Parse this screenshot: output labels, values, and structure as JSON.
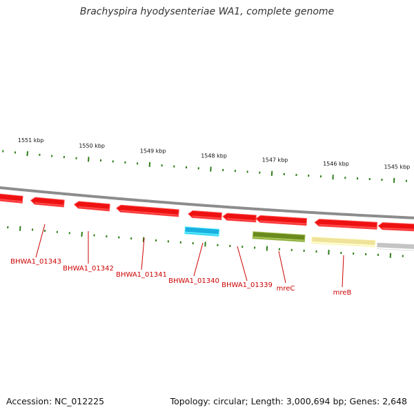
{
  "title": "Brachyspira hyodysenteriae WA1, complete genome",
  "footer": {
    "accession": "Accession: NC_012225",
    "summary": "Topology: circular; Length: 3,000,694 bp; Genes: 2,648"
  },
  "colors": {
    "backbone": "#8c8c8c",
    "tick": "#2e7d1a",
    "label": "#cc0000",
    "gene_red": "#ee1111",
    "gene_blue": "#1ab0e0",
    "gene_olive": "#6b8a1e",
    "gene_yellow": "#efe39a",
    "gene_grey": "#c4c4c4"
  },
  "kbp_labels": [
    "1551 kbp",
    "1550 kbp",
    "1549 kbp",
    "1548 kbp",
    "1547 kbp",
    "1546 kbp",
    "1545 kbp"
  ],
  "genes": [
    {
      "label": "",
      "color": "gene_red"
    },
    {
      "label": "BHWA1_01343",
      "color": "gene_red"
    },
    {
      "label": "BHWA1_01342",
      "color": "gene_red"
    },
    {
      "label": "BHWA1_01341",
      "color": "gene_red"
    },
    {
      "label": "",
      "color": "gene_red"
    },
    {
      "label": "BHWA1_01340",
      "color": "gene_blue"
    },
    {
      "label": "BHWA1_01339",
      "color": "gene_red"
    },
    {
      "label": "mreC",
      "color": "gene_olive"
    },
    {
      "label": "",
      "color": "gene_red"
    },
    {
      "label": "mreB",
      "color": "gene_yellow"
    },
    {
      "label": "",
      "color": "gene_red"
    },
    {
      "label": "",
      "color": "gene_red"
    },
    {
      "label": "",
      "color": "gene_grey"
    }
  ]
}
